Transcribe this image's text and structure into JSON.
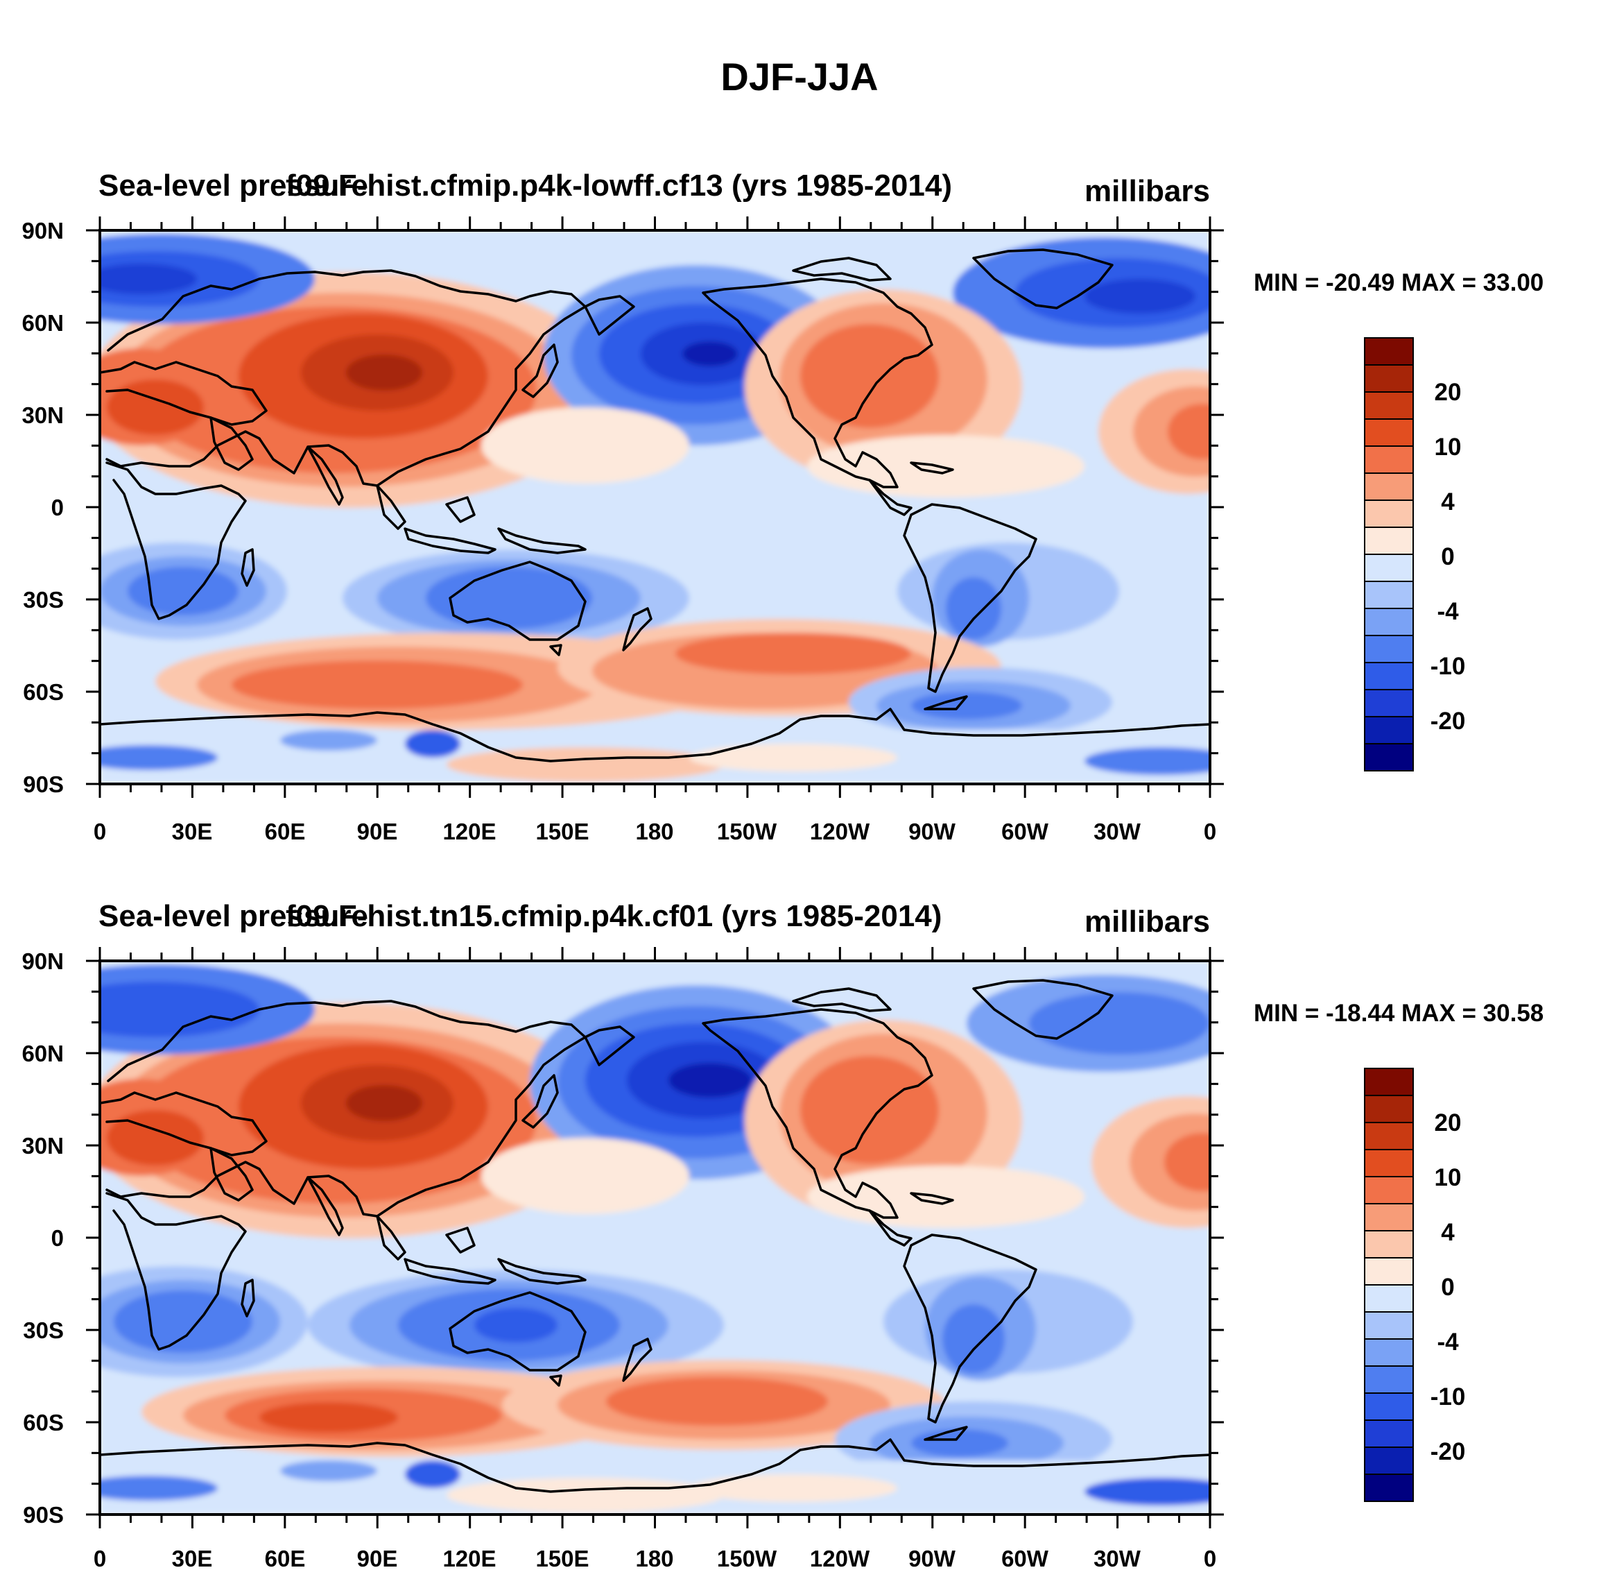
{
  "figure": {
    "title": "DJF-JJA"
  },
  "colors": {
    "levels_scale": [
      "#000080",
      "#0a1fb0",
      "#1f3fd6",
      "#2f5ce8",
      "#4f7ef0",
      "#7aa2f5",
      "#a8c4fa",
      "#d6e6fd",
      "#fde9dc",
      "#fbc7ad",
      "#f79c78",
      "#f17149",
      "#e24e20",
      "#c93a12",
      "#a62508",
      "#7d0a00"
    ]
  },
  "colorbar": {
    "labels": [
      "20",
      "10",
      "4",
      "0",
      "-4",
      "-10",
      "-20"
    ]
  },
  "axes": {
    "lat_labels": [
      "90N",
      "60N",
      "30N",
      "0",
      "30S",
      "60S",
      "90S"
    ],
    "lon_labels": [
      "0",
      "30E",
      "60E",
      "90E",
      "120E",
      "150E",
      "180",
      "150W",
      "120W",
      "90W",
      "60W",
      "30W",
      "0"
    ]
  },
  "panels": [
    {
      "title_left": "Sea-level pressure",
      "title_overlap": "f09.F-hist.cfmip.p4k-lowff.cf13 (yrs 1985-2014)",
      "units": "millibars",
      "stats": "MIN = -20.49 MAX =  33.00"
    },
    {
      "title_left": "Sea-level pressure",
      "title_overlap": "f09.F-hist.tn15.cfmip.p4k.cf01 (yrs 1985-2014)",
      "units": "millibars",
      "stats": "MIN = -18.44 MAX =  30.58"
    }
  ]
}
